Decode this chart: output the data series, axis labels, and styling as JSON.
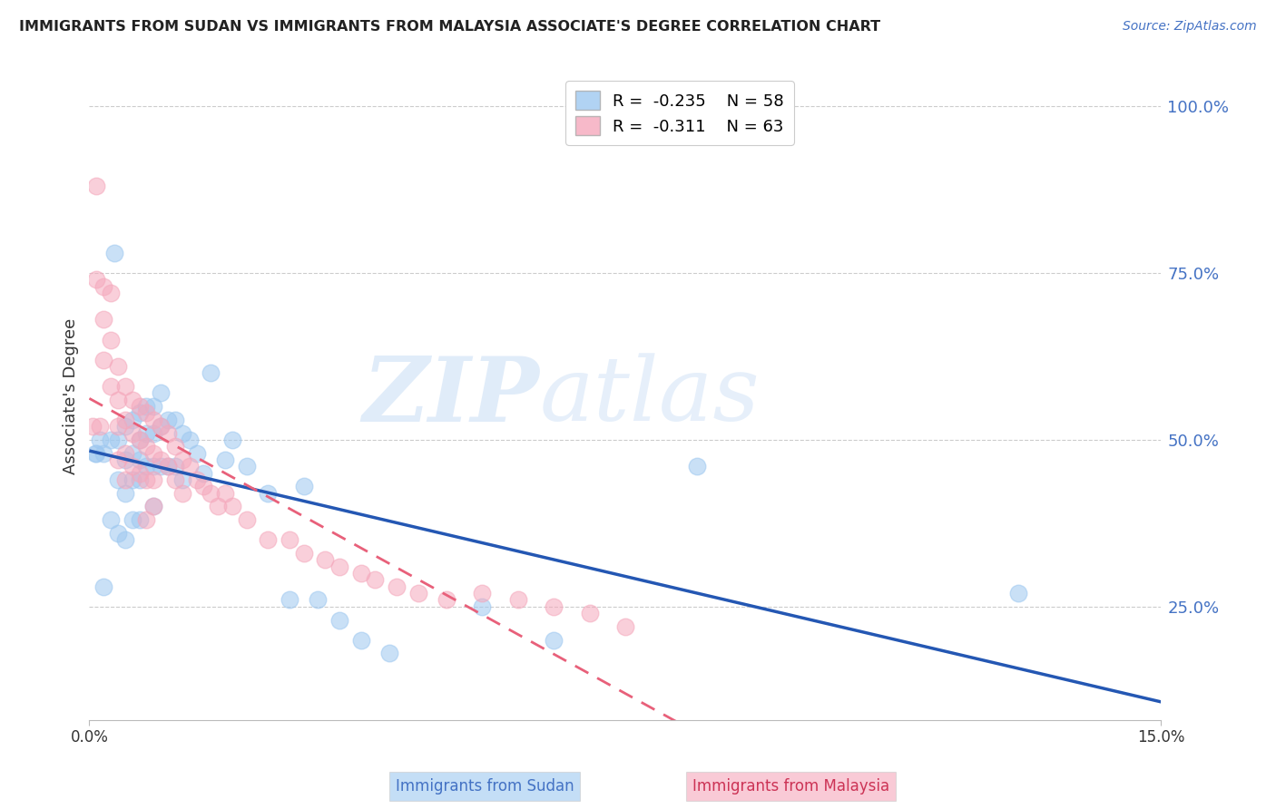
{
  "title": "IMMIGRANTS FROM SUDAN VS IMMIGRANTS FROM MALAYSIA ASSOCIATE'S DEGREE CORRELATION CHART",
  "source": "Source: ZipAtlas.com",
  "ylabel": "Associate's Degree",
  "right_yticks": [
    "100.0%",
    "75.0%",
    "50.0%",
    "25.0%"
  ],
  "right_ytick_vals": [
    1.0,
    0.75,
    0.5,
    0.25
  ],
  "xmin": 0.0,
  "xmax": 0.15,
  "ymin": 0.08,
  "ymax": 1.05,
  "legend_r_sudan": "-0.235",
  "legend_n_sudan": 58,
  "legend_r_malaysia": "-0.311",
  "legend_n_malaysia": 63,
  "color_sudan": "#9EC8F0",
  "color_malaysia": "#F5A8BC",
  "color_sudan_line": "#2457B3",
  "color_malaysia_line": "#E8607A",
  "watermark_left": "ZIP",
  "watermark_right": "atlas",
  "sudan_x": [
    0.0008,
    0.001,
    0.0015,
    0.002,
    0.002,
    0.003,
    0.003,
    0.0035,
    0.004,
    0.004,
    0.004,
    0.005,
    0.005,
    0.005,
    0.005,
    0.006,
    0.006,
    0.006,
    0.006,
    0.007,
    0.007,
    0.007,
    0.007,
    0.007,
    0.008,
    0.008,
    0.008,
    0.009,
    0.009,
    0.009,
    0.009,
    0.01,
    0.01,
    0.01,
    0.011,
    0.011,
    0.012,
    0.012,
    0.013,
    0.013,
    0.014,
    0.015,
    0.016,
    0.017,
    0.019,
    0.02,
    0.022,
    0.025,
    0.028,
    0.03,
    0.032,
    0.035,
    0.038,
    0.042,
    0.055,
    0.065,
    0.085,
    0.13
  ],
  "sudan_y": [
    0.48,
    0.48,
    0.5,
    0.48,
    0.28,
    0.5,
    0.38,
    0.78,
    0.5,
    0.44,
    0.36,
    0.52,
    0.47,
    0.42,
    0.35,
    0.53,
    0.48,
    0.44,
    0.38,
    0.54,
    0.5,
    0.47,
    0.44,
    0.38,
    0.55,
    0.51,
    0.46,
    0.55,
    0.51,
    0.46,
    0.4,
    0.57,
    0.52,
    0.46,
    0.53,
    0.46,
    0.53,
    0.46,
    0.51,
    0.44,
    0.5,
    0.48,
    0.45,
    0.6,
    0.47,
    0.5,
    0.46,
    0.42,
    0.26,
    0.43,
    0.26,
    0.23,
    0.2,
    0.18,
    0.25,
    0.2,
    0.46,
    0.27
  ],
  "malaysia_x": [
    0.0005,
    0.001,
    0.001,
    0.0015,
    0.002,
    0.002,
    0.002,
    0.003,
    0.003,
    0.003,
    0.004,
    0.004,
    0.004,
    0.004,
    0.005,
    0.005,
    0.005,
    0.005,
    0.006,
    0.006,
    0.006,
    0.007,
    0.007,
    0.007,
    0.008,
    0.008,
    0.008,
    0.008,
    0.009,
    0.009,
    0.009,
    0.009,
    0.01,
    0.01,
    0.011,
    0.011,
    0.012,
    0.012,
    0.013,
    0.013,
    0.014,
    0.015,
    0.016,
    0.017,
    0.018,
    0.019,
    0.02,
    0.022,
    0.025,
    0.028,
    0.03,
    0.033,
    0.035,
    0.038,
    0.04,
    0.043,
    0.046,
    0.05,
    0.055,
    0.06,
    0.065,
    0.07,
    0.075
  ],
  "malaysia_y": [
    0.52,
    0.88,
    0.74,
    0.52,
    0.73,
    0.68,
    0.62,
    0.72,
    0.65,
    0.58,
    0.61,
    0.56,
    0.52,
    0.47,
    0.58,
    0.53,
    0.48,
    0.44,
    0.56,
    0.51,
    0.46,
    0.55,
    0.5,
    0.45,
    0.54,
    0.49,
    0.44,
    0.38,
    0.53,
    0.48,
    0.44,
    0.4,
    0.52,
    0.47,
    0.51,
    0.46,
    0.49,
    0.44,
    0.47,
    0.42,
    0.46,
    0.44,
    0.43,
    0.42,
    0.4,
    0.42,
    0.4,
    0.38,
    0.35,
    0.35,
    0.33,
    0.32,
    0.31,
    0.3,
    0.29,
    0.28,
    0.27,
    0.26,
    0.27,
    0.26,
    0.25,
    0.24,
    0.22
  ]
}
